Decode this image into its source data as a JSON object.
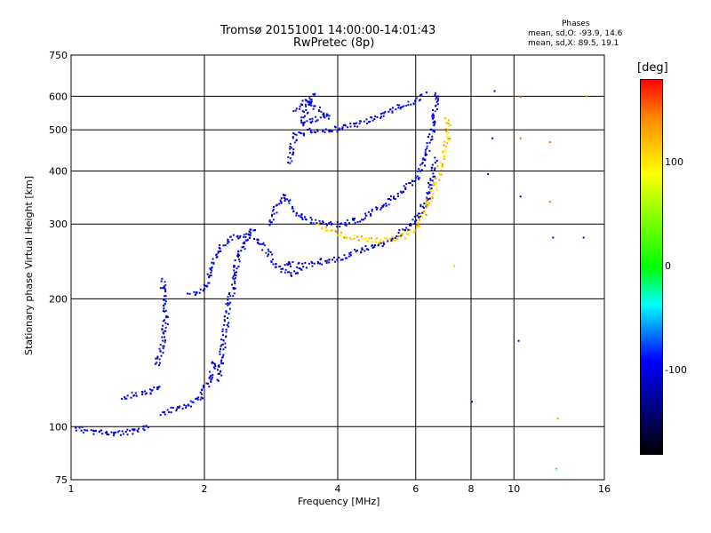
{
  "chart_data": {
    "type": "scatter",
    "title": "Tromsø 20151001 14:00:00-14:01:43",
    "subtitle": "RwPretec (8p)",
    "xlabel": "Frequency [MHz]",
    "ylabel": "Stationary phase Virtual Height [km]",
    "x_scale": "log",
    "y_scale": "log",
    "xlim": [
      1,
      16
    ],
    "ylim": [
      75,
      750
    ],
    "x_ticks": [
      "1",
      "2",
      "4",
      "6",
      "8",
      "10",
      "16"
    ],
    "y_ticks": [
      "750",
      "600",
      "500",
      "400",
      "300",
      "200",
      "100",
      "75"
    ],
    "grid": true,
    "phase_title": "Phases",
    "phase_o_label": "mean, sd,O:",
    "phase_o_values": "-93.9, 14.6",
    "phase_x_label": "mean, sd,X:",
    "phase_x_values": "89.5, 19.1",
    "colorbar": {
      "unit": "[deg]",
      "ticks": [
        "100",
        "0",
        "-100"
      ],
      "range": [
        -180,
        180
      ]
    },
    "traces": [
      {
        "name": "",
        "phase": -100,
        "points": [
          [
            1.02,
            100
          ],
          [
            1.05,
            99
          ],
          [
            1.1,
            98
          ],
          [
            1.2,
            97
          ],
          [
            1.3,
            97
          ],
          [
            1.4,
            98
          ],
          [
            1.5,
            100
          ]
        ]
      },
      {
        "name": "",
        "phase": -100,
        "points": [
          [
            1.3,
            118
          ],
          [
            1.4,
            120
          ],
          [
            1.5,
            121
          ],
          [
            1.6,
            125
          ]
        ]
      },
      {
        "name": "",
        "phase": -100,
        "points": [
          [
            1.55,
            140
          ],
          [
            1.6,
            155
          ],
          [
            1.62,
            170
          ],
          [
            1.63,
            190
          ],
          [
            1.6,
            225
          ]
        ]
      },
      {
        "name": "",
        "phase": -100,
        "points": [
          [
            1.6,
            108
          ],
          [
            1.8,
            112
          ],
          [
            1.95,
            118
          ],
          [
            2.05,
            130
          ],
          [
            2.1,
            145
          ]
        ]
      },
      {
        "name": "",
        "phase": -100,
        "points": [
          [
            1.85,
            205
          ],
          [
            1.95,
            207
          ],
          [
            2.0,
            215
          ],
          [
            2.05,
            230
          ],
          [
            2.1,
            250
          ],
          [
            2.2,
            270
          ],
          [
            2.3,
            280
          ],
          [
            2.45,
            285
          ],
          [
            2.6,
            280
          ],
          [
            2.75,
            260
          ],
          [
            2.9,
            240
          ],
          [
            3.1,
            230
          ],
          [
            3.3,
            235
          ]
        ]
      },
      {
        "name": "",
        "phase": -100,
        "points": [
          [
            2.15,
            130
          ],
          [
            2.2,
            160
          ],
          [
            2.25,
            190
          ],
          [
            2.3,
            210
          ],
          [
            2.35,
            240
          ],
          [
            2.4,
            260
          ],
          [
            2.5,
            280
          ],
          [
            2.55,
            295
          ],
          [
            2.6,
            290
          ]
        ]
      },
      {
        "name": "",
        "phase": -100,
        "points": [
          [
            2.8,
            300
          ],
          [
            2.9,
            330
          ],
          [
            3.0,
            350
          ],
          [
            3.1,
            340
          ],
          [
            3.2,
            320
          ],
          [
            3.5,
            305
          ],
          [
            4.0,
            300
          ],
          [
            4.5,
            310
          ],
          [
            5.0,
            330
          ],
          [
            5.5,
            355
          ],
          [
            6.0,
            385
          ],
          [
            6.3,
            430
          ],
          [
            6.5,
            500
          ],
          [
            6.6,
            560
          ],
          [
            6.7,
            620
          ]
        ]
      },
      {
        "name": "",
        "phase": -110,
        "points": [
          [
            3.0,
            245
          ],
          [
            3.3,
            240
          ],
          [
            3.6,
            245
          ],
          [
            4.0,
            250
          ],
          [
            4.5,
            262
          ],
          [
            5.0,
            270
          ],
          [
            5.5,
            285
          ],
          [
            6.0,
            310
          ],
          [
            6.3,
            340
          ],
          [
            6.5,
            380
          ],
          [
            6.6,
            430
          ]
        ]
      },
      {
        "name": "",
        "phase": -100,
        "points": [
          [
            3.1,
            420
          ],
          [
            3.15,
            460
          ],
          [
            3.2,
            490
          ],
          [
            3.5,
            500
          ],
          [
            4.0,
            505
          ],
          [
            4.5,
            520
          ],
          [
            5.0,
            545
          ],
          [
            5.5,
            570
          ],
          [
            6.0,
            590
          ],
          [
            6.3,
            610
          ]
        ]
      },
      {
        "name": "",
        "phase": -100,
        "points": [
          [
            3.2,
            560
          ],
          [
            3.4,
            590
          ],
          [
            3.6,
            560
          ],
          [
            3.8,
            540
          ],
          [
            3.3,
            520
          ],
          [
            3.5,
            620
          ]
        ]
      },
      {
        "name": "",
        "phase": 105,
        "points": [
          [
            3.6,
            300
          ],
          [
            4.0,
            285
          ],
          [
            4.5,
            278
          ],
          [
            5.0,
            275
          ],
          [
            5.5,
            280
          ],
          [
            6.0,
            295
          ],
          [
            6.3,
            330
          ],
          [
            6.6,
            370
          ],
          [
            6.8,
            410
          ],
          [
            7.0,
            460
          ],
          [
            7.1,
            500
          ],
          [
            7.0,
            540
          ]
        ]
      }
    ],
    "sparse_points": [
      {
        "x": 10.3,
        "y": 600,
        "phase": 140
      },
      {
        "x": 10.3,
        "y": 480,
        "phase": 140
      },
      {
        "x": 10.3,
        "y": 350,
        "phase": -100
      },
      {
        "x": 12.0,
        "y": 470,
        "phase": 140
      },
      {
        "x": 12.0,
        "y": 340,
        "phase": 140
      },
      {
        "x": 12.2,
        "y": 280,
        "phase": -100
      },
      {
        "x": 14.5,
        "y": 600,
        "phase": 100
      },
      {
        "x": 14.3,
        "y": 280,
        "phase": -100
      },
      {
        "x": 9.0,
        "y": 620,
        "phase": -100
      },
      {
        "x": 8.9,
        "y": 480,
        "phase": -100
      },
      {
        "x": 8.7,
        "y": 395,
        "phase": -100
      },
      {
        "x": 8.0,
        "y": 115,
        "phase": -100
      },
      {
        "x": 10.2,
        "y": 160,
        "phase": -100
      },
      {
        "x": 12.5,
        "y": 105,
        "phase": 120
      },
      {
        "x": 12.4,
        "y": 80,
        "phase": -10
      },
      {
        "x": 7.3,
        "y": 240,
        "phase": 110
      }
    ]
  }
}
